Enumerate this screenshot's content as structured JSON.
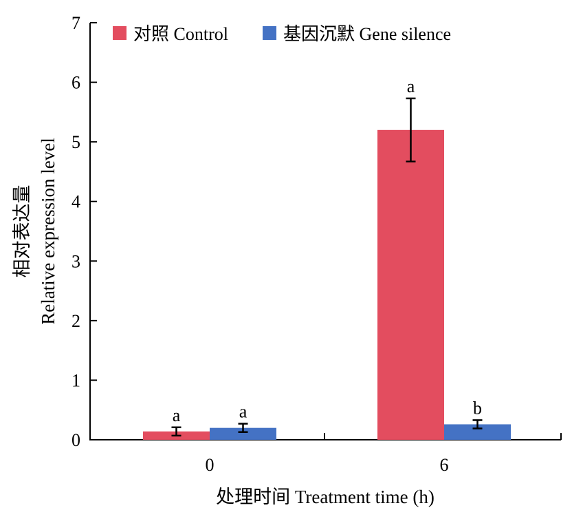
{
  "chart_data": {
    "type": "bar",
    "categories": [
      "0",
      "6"
    ],
    "series": [
      {
        "name": "对照 Control",
        "color": "#e34d5f",
        "values": [
          0.14,
          5.2
        ],
        "errors": [
          0.07,
          0.53
        ],
        "labels": [
          "a",
          "a"
        ]
      },
      {
        "name": "基因沉默 Gene silence",
        "color": "#4472c4",
        "values": [
          0.2,
          0.26
        ],
        "errors": [
          0.07,
          0.07
        ],
        "labels": [
          "a",
          "b"
        ]
      }
    ],
    "xlabel": "处理时间 Treatment time (h)",
    "ylabel_line1": "相对表达量",
    "ylabel_line2": "Relative expression level",
    "ylim": [
      0,
      7
    ],
    "yticks": [
      "0",
      "1",
      "2",
      "3",
      "4",
      "5",
      "6",
      "7"
    ],
    "grid": false,
    "legend_position": "top-left"
  }
}
